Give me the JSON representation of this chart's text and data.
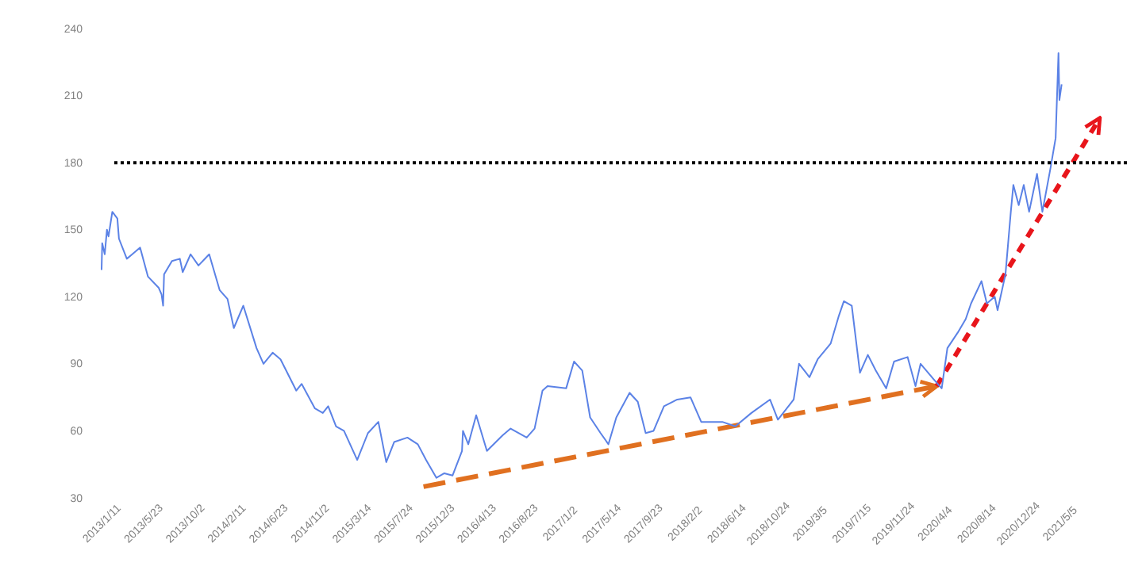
{
  "chart_data": {
    "type": "line",
    "x": [
      "2013-01-11",
      "2013-01-13",
      "2013-01-21",
      "2013-01-28",
      "2013-02-02",
      "2013-02-14",
      "2013-03-02",
      "2013-03-07",
      "2013-04-01",
      "2013-04-18",
      "2013-05-13",
      "2013-06-07",
      "2013-07-11",
      "2013-07-20",
      "2013-07-25",
      "2013-07-28",
      "2013-08-22",
      "2013-09-16",
      "2013-09-25",
      "2013-10-20",
      "2013-11-14",
      "2013-12-18",
      "2014-01-20",
      "2014-02-14",
      "2014-03-06",
      "2014-04-05",
      "2014-05-17",
      "2014-06-08",
      "2014-07-07",
      "2014-08-01",
      "2014-09-20",
      "2014-10-07",
      "2014-11-18",
      "2014-12-13",
      "2014-12-30",
      "2015-01-24",
      "2015-02-18",
      "2015-04-01",
      "2015-05-05",
      "2015-06-07",
      "2015-07-02",
      "2015-07-27",
      "2015-09-07",
      "2015-10-10",
      "2015-11-05",
      "2015-12-08",
      "2016-01-02",
      "2016-01-28",
      "2016-02-27",
      "2016-03-01",
      "2016-03-18",
      "2016-04-12",
      "2016-05-16",
      "2016-07-05",
      "2016-07-30",
      "2016-09-19",
      "2016-10-14",
      "2016-11-08",
      "2016-11-24",
      "2017-01-22",
      "2017-02-16",
      "2017-03-14",
      "2017-04-08",
      "2017-05-11",
      "2017-06-05",
      "2017-06-30",
      "2017-08-11",
      "2017-09-06",
      "2017-10-01",
      "2017-10-26",
      "2017-11-28",
      "2018-01-09",
      "2018-02-20",
      "2018-03-26",
      "2018-06-01",
      "2018-07-12",
      "2018-09-01",
      "2018-10-30",
      "2018-11-24",
      "2019-01-13",
      "2019-01-30",
      "2019-03-04",
      "2019-03-30",
      "2019-05-10",
      "2019-06-04",
      "2019-06-21",
      "2019-07-16",
      "2019-08-11",
      "2019-09-05",
      "2019-09-30",
      "2019-11-02",
      "2019-11-27",
      "2020-01-09",
      "2020-02-03",
      "2020-02-19",
      "2020-04-01",
      "2020-04-26",
      "2020-05-14",
      "2020-06-16",
      "2020-07-11",
      "2020-07-28",
      "2020-08-30",
      "2020-09-16",
      "2020-10-11",
      "2020-10-20",
      "2020-11-14",
      "2020-12-01",
      "2020-12-09",
      "2020-12-26",
      "2021-01-11",
      "2021-01-28",
      "2021-02-22",
      "2021-03-11",
      "2021-04-05",
      "2021-04-22",
      "2021-05-01",
      "2021-05-04",
      "2021-05-11"
    ],
    "series": [
      {
        "color": "#e07020",
        "line_style": "dashed",
        "x": [
          "2015-10-28",
          "2020-04-10"
        ],
        "values": [
          35,
          80
        ]
      },
      {
        "color": "#e8151b",
        "line_style": "dotted",
        "x": [
          "2020-04-10",
          "2021-09-09"
        ],
        "values": [
          80,
          200
        ]
      },
      {
        "color": "#5b82e6",
        "values": [
          132,
          144,
          139,
          150,
          147,
          158,
          155,
          146,
          137,
          139,
          142,
          129,
          124,
          121,
          116,
          130,
          136,
          137,
          131,
          139,
          134,
          139,
          123,
          119,
          106,
          116,
          97,
          90,
          95,
          92,
          78,
          81,
          70,
          68,
          71,
          62,
          60,
          47,
          59,
          64,
          46,
          55,
          57,
          54,
          47,
          39,
          41,
          40,
          51,
          60,
          54,
          67,
          51,
          58,
          61,
          57,
          61,
          78,
          80,
          79,
          91,
          87,
          66,
          59,
          54,
          66,
          77,
          73,
          59,
          60,
          71,
          74,
          75,
          64,
          64,
          62,
          68,
          74,
          65,
          74,
          90,
          84,
          92,
          99,
          111,
          118,
          116,
          86,
          94,
          87,
          79,
          91,
          93,
          80,
          90,
          83,
          79,
          97,
          104,
          110,
          117,
          127,
          117,
          120,
          114,
          130,
          158,
          170,
          161,
          170,
          158,
          175,
          158,
          177,
          191,
          229,
          208,
          215
        ]
      }
    ],
    "xlim": [
      "2013-01-11",
      "2021-12-09"
    ],
    "xticks": [
      {
        "value": "2013-01-11",
        "label": "2013/1/11"
      },
      {
        "value": "2013-05-23",
        "label": "2013/5/23"
      },
      {
        "value": "2013-10-02",
        "label": "2013/10/2"
      },
      {
        "value": "2014-02-11",
        "label": "2014/2/11"
      },
      {
        "value": "2014-06-23",
        "label": "2014/6/23"
      },
      {
        "value": "2014-11-02",
        "label": "2014/11/2"
      },
      {
        "value": "2015-03-14",
        "label": "2015/3/14"
      },
      {
        "value": "2015-07-24",
        "label": "2015/7/24"
      },
      {
        "value": "2015-12-03",
        "label": "2015/12/3"
      },
      {
        "value": "2016-04-13",
        "label": "2016/4/13"
      },
      {
        "value": "2016-08-23",
        "label": "2016/8/23"
      },
      {
        "value": "2017-01-02",
        "label": "2017/1/2"
      },
      {
        "value": "2017-05-14",
        "label": "2017/5/14"
      },
      {
        "value": "2017-09-23",
        "label": "2017/9/23"
      },
      {
        "value": "2018-02-02",
        "label": "2018/2/2"
      },
      {
        "value": "2018-06-14",
        "label": "2018/6/14"
      },
      {
        "value": "2018-10-24",
        "label": "2018/10/24"
      },
      {
        "value": "2019-03-05",
        "label": "2019/3/5"
      },
      {
        "value": "2019-07-15",
        "label": "2019/7/15"
      },
      {
        "value": "2019-11-24",
        "label": "2019/11/24"
      },
      {
        "value": "2020-04-04",
        "label": "2020/4/4"
      },
      {
        "value": "2020-08-14",
        "label": "2020/8/14"
      },
      {
        "value": "2020-12-24",
        "label": "2020/12/24"
      },
      {
        "value": "2021-05-05",
        "label": "2021/5/5"
      }
    ],
    "ylim": [
      30,
      240
    ],
    "yticks": [
      30,
      60,
      90,
      120,
      150,
      180,
      210,
      240
    ],
    "ref_lines": [
      {
        "axis": "y",
        "value": 180,
        "color": "#000000",
        "line_style": "dotted"
      }
    ],
    "grid": false,
    "marker": "none",
    "line_style": "solid"
  }
}
